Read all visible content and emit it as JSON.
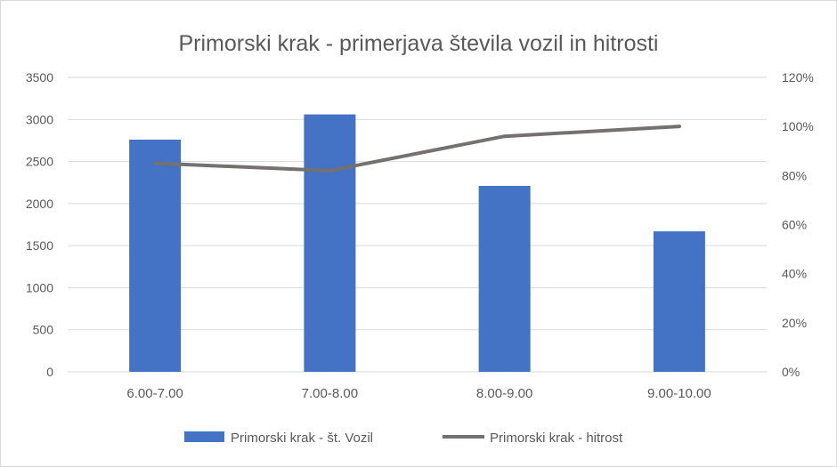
{
  "chart_data": {
    "type": "bar",
    "title": "Primorski krak - primerjava števila vozil in hitrosti",
    "categories": [
      "6.00-7.00",
      "7.00-8.00",
      "8.00-9.00",
      "9.00-10.00"
    ],
    "series": [
      {
        "name": "Primorski krak - št. Vozil",
        "type": "bar",
        "axis": "left",
        "color": "#4472c4",
        "values": [
          2760,
          3060,
          2210,
          1670
        ]
      },
      {
        "name": "Primorski krak - hitrost",
        "type": "line",
        "axis": "right",
        "color": "#767171",
        "values": [
          0.85,
          0.82,
          0.96,
          1.0
        ]
      }
    ],
    "y_left": {
      "min": 0,
      "max": 3500,
      "ticks": [
        "0",
        "500",
        "1000",
        "1500",
        "2000",
        "2500",
        "3000",
        "3500"
      ]
    },
    "y_right": {
      "min": 0,
      "max": 1.2,
      "ticks": [
        "0%",
        "20%",
        "40%",
        "60%",
        "80%",
        "100%",
        "120%"
      ]
    },
    "grid": true,
    "legend": "bottom"
  }
}
